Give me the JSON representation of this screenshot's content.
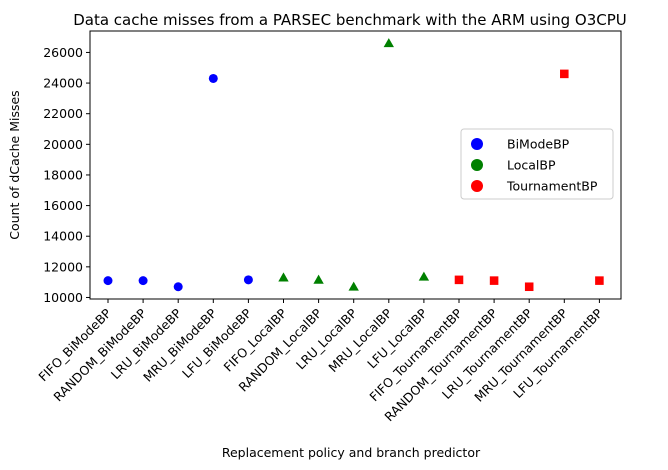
{
  "chart_data": {
    "type": "scatter",
    "title": "Data cache misses from a PARSEC benchmark with the ARM using O3CPU",
    "xlabel": "Replacement policy and branch predictor",
    "ylabel": "Count of dCache Misses",
    "ylim": [
      9900,
      27400
    ],
    "yticks": [
      10000,
      12000,
      14000,
      16000,
      18000,
      20000,
      22000,
      24000,
      26000
    ],
    "legend_position": "center-right",
    "grid": false,
    "categories": [
      "FIFO_BiModeBP",
      "RANDOM_BiModeBP",
      "LRU_BiModeBP",
      "MRU_BiModeBP",
      "LFU_BiModeBP",
      "FIFO_LocalBP",
      "RANDOM_LocalBP",
      "LRU_LocalBP",
      "MRU_LocalBP",
      "LFU_LocalBP",
      "FIFO_TournamentBP",
      "RANDOM_TournamentBP",
      "LRU_TournamentBP",
      "MRU_TournamentBP",
      "LFU_TournamentBP"
    ],
    "series": [
      {
        "name": "BiModeBP",
        "color": "#0000ff",
        "marker": "circle",
        "x": [
          "FIFO_BiModeBP",
          "RANDOM_BiModeBP",
          "LRU_BiModeBP",
          "MRU_BiModeBP",
          "LFU_BiModeBP"
        ],
        "values": [
          11100,
          11100,
          10700,
          24300,
          11150
        ]
      },
      {
        "name": "LocalBP",
        "color": "#008000",
        "marker": "triangle",
        "x": [
          "FIFO_LocalBP",
          "RANDOM_LocalBP",
          "LRU_LocalBP",
          "MRU_LocalBP",
          "LFU_LocalBP"
        ],
        "values": [
          11300,
          11150,
          10700,
          26600,
          11350
        ]
      },
      {
        "name": "TournamentBP",
        "color": "#ff0000",
        "marker": "square",
        "x": [
          "FIFO_TournamentBP",
          "RANDOM_TournamentBP",
          "LRU_TournamentBP",
          "MRU_TournamentBP",
          "LFU_TournamentBP"
        ],
        "values": [
          11150,
          11100,
          10700,
          24600,
          11100
        ]
      }
    ]
  }
}
